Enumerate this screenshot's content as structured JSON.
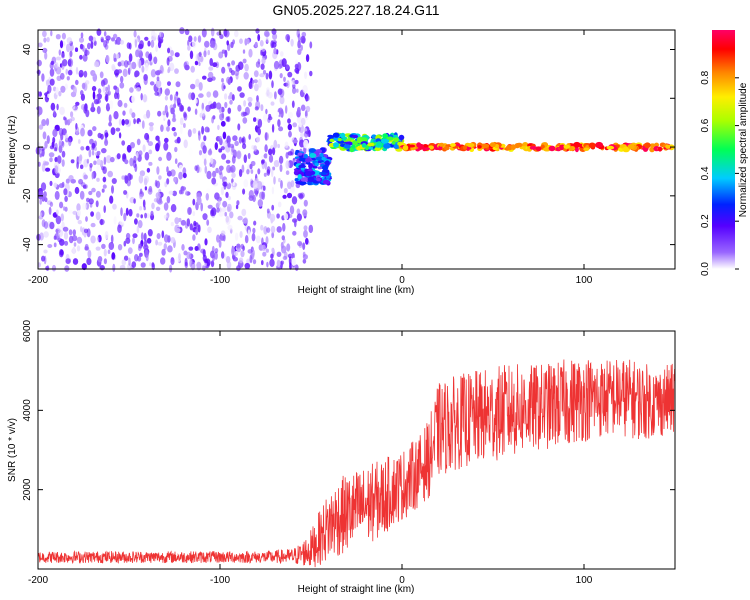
{
  "figure": {
    "title": "GN05.2025.227.18.24.G11"
  },
  "colors": {
    "snr_line": "#ee3333",
    "axis": "#000000",
    "background": "#ffffff"
  },
  "chart_data": [
    {
      "type": "heatmap",
      "xlabel": "Height of straight line (km)",
      "ylabel": "Frequency (Hz)",
      "xlim": [
        -200,
        150
      ],
      "ylim": [
        -50,
        48
      ],
      "xticks": [
        -200,
        -100,
        0,
        100
      ],
      "yticks": [
        -40,
        -20,
        0,
        20,
        40
      ],
      "colorbar": {
        "label": "Normalized spectral amplitude",
        "range": [
          0,
          1
        ],
        "ticks": [
          "0.0",
          "0.2",
          "0.4",
          "0.6",
          "0.8"
        ],
        "colormap": "rainbow (white/violet at 0 through blue, cyan, green, yellow, orange to red/magenta near 1)"
      },
      "regions": [
        {
          "x_range": [
            -200,
            -50
          ],
          "freq_range": [
            -50,
            48
          ],
          "amplitude_range": [
            0.0,
            0.1
          ],
          "pattern": "broadband noise"
        },
        {
          "x_range": [
            -58,
            -40
          ],
          "freq_center": -8,
          "freq_halfwidth": 7,
          "amplitude_range": [
            0.1,
            0.4
          ],
          "pattern": "spread signal"
        },
        {
          "x_range": [
            -40,
            0
          ],
          "freq_center": 2,
          "freq_halfwidth": 3,
          "amplitude_range": [
            0.2,
            0.7
          ],
          "pattern": "narrowing signal"
        },
        {
          "x_range": [
            0,
            150
          ],
          "freq_center": 0,
          "freq_halfwidth": 1,
          "amplitude_range": [
            0.7,
            1.0
          ],
          "pattern": "narrow tone"
        }
      ],
      "grid": false
    },
    {
      "type": "line",
      "xlabel": "Height of straight line (km)",
      "ylabel": "SNR (10 * v/v)",
      "xlim": [
        -200,
        150
      ],
      "ylim": [
        0,
        6000
      ],
      "xticks": [
        -200,
        -100,
        0,
        100
      ],
      "yticks": [
        2000,
        4000,
        6000
      ],
      "series": [
        {
          "x": [
            -200,
            -175,
            -150,
            -125,
            -100,
            -75,
            -60,
            -55,
            -50,
            -45,
            -40,
            -35,
            -30,
            -25,
            -20,
            -15,
            -10,
            -5,
            0,
            5,
            10,
            15,
            20,
            25,
            30,
            40,
            50,
            60,
            70,
            80,
            90,
            100,
            110,
            120,
            130,
            140,
            150
          ],
          "y": [
            300,
            300,
            300,
            300,
            300,
            300,
            320,
            380,
            500,
            800,
            1100,
            1300,
            1400,
            1500,
            1600,
            1700,
            1800,
            2000,
            2100,
            2300,
            2500,
            2800,
            3500,
            3600,
            3700,
            3800,
            3900,
            4000,
            4050,
            4100,
            4200,
            4300,
            4300,
            4350,
            4250,
            4200,
            4300
          ],
          "noise_amplitude": [
            150,
            150,
            150,
            150,
            150,
            150,
            200,
            300,
            500,
            700,
            900,
            1000,
            1000,
            1000,
            1000,
            1000,
            1000,
            900,
            900,
            900,
            900,
            1000,
            1200,
            1200,
            1200,
            1200,
            1200,
            1200,
            1100,
            1100,
            1100,
            1100,
            1000,
            1000,
            1000,
            900,
            900
          ]
        }
      ],
      "grid": false
    }
  ]
}
